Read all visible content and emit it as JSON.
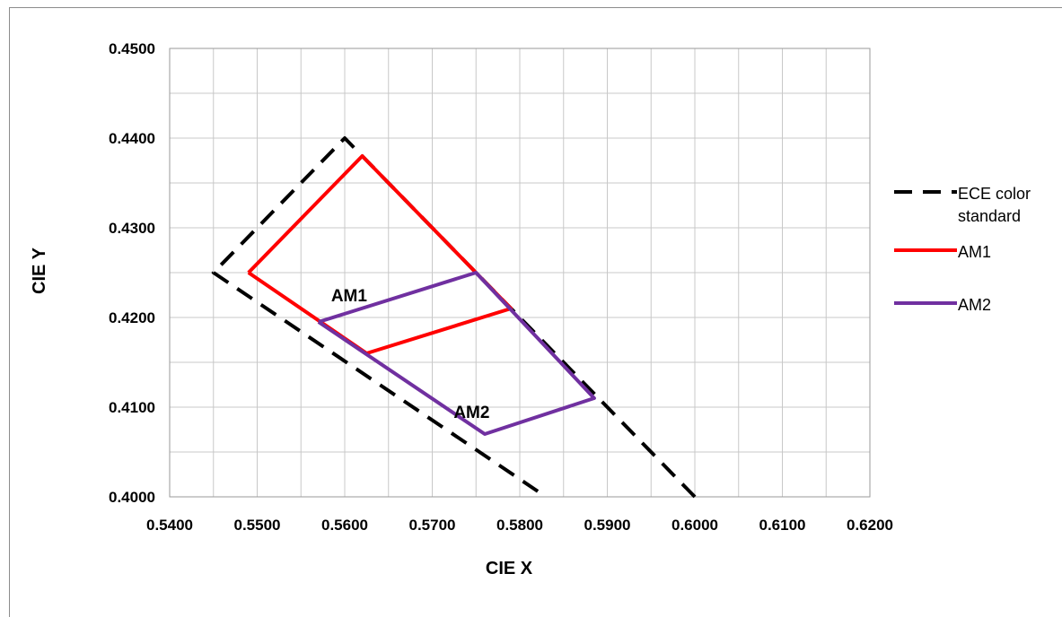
{
  "chart_data": {
    "type": "line",
    "xlabel": "CIE X",
    "ylabel": "CIE  Y",
    "xlim": [
      0.54,
      0.62
    ],
    "ylim": [
      0.4,
      0.45
    ],
    "x_ticks": [
      "0.5400",
      "0.5500",
      "0.5600",
      "0.5700",
      "0.5800",
      "0.5900",
      "0.6000",
      "0.6100",
      "0.6200"
    ],
    "y_ticks": [
      "0.4000",
      "0.4100",
      "0.4200",
      "0.4300",
      "0.4400",
      "0.4500"
    ],
    "grid": true,
    "legend_position": "right",
    "series": [
      {
        "name": "ECE color standard",
        "color": "#000000",
        "style": "dashed",
        "x": [
          0.6,
          0.56,
          0.545,
          0.583
        ],
        "y": [
          0.4,
          0.44,
          0.425,
          0.4
        ]
      },
      {
        "name": "AM1",
        "color": "#ff0000",
        "style": "solid",
        "x": [
          0.549,
          0.562,
          0.579,
          0.5625,
          0.549
        ],
        "y": [
          0.425,
          0.438,
          0.421,
          0.416,
          0.425
        ]
      },
      {
        "name": "AM2",
        "color": "#7030a0",
        "style": "solid",
        "x": [
          0.557,
          0.575,
          0.5885,
          0.576,
          0.557
        ],
        "y": [
          0.4195,
          0.425,
          0.411,
          0.407,
          0.4195
        ]
      }
    ],
    "annotations": [
      {
        "text": "AM1",
        "x": 0.5605,
        "y": 0.4225
      },
      {
        "text": "AM2",
        "x": 0.5745,
        "y": 0.4095
      }
    ],
    "legend": [
      {
        "label_lines": [
          "ECE color",
          "standard"
        ],
        "style": "dashed",
        "color": "#000000"
      },
      {
        "label_lines": [
          "AM1"
        ],
        "style": "solid",
        "color": "#ff0000"
      },
      {
        "label_lines": [
          "AM2"
        ],
        "style": "solid",
        "color": "#7030a0"
      }
    ]
  }
}
